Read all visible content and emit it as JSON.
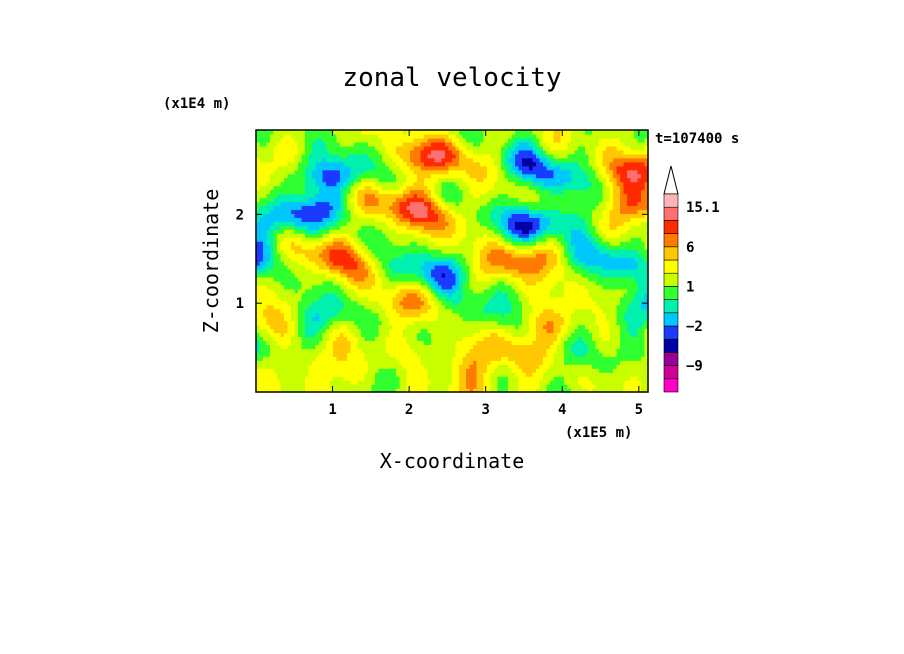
{
  "chart_data": {
    "type": "heatmap",
    "title": "zonal velocity",
    "xlabel": "X-coordinate",
    "ylabel": "Z-coordinate",
    "x_unit": "(x1E5 m)",
    "y_unit": "(x1E4 m)",
    "time_label": "t=107400 s",
    "xlim": [
      0,
      5.12
    ],
    "ylim": [
      0,
      2.95
    ],
    "x_ticks": [
      "1",
      "2",
      "3",
      "4",
      "5"
    ],
    "y_ticks": [
      "1",
      "2"
    ],
    "colorbar": {
      "levels": [
        -15,
        -12,
        -9,
        -6,
        -3,
        -2,
        -1,
        0,
        1,
        2,
        3,
        6,
        9,
        12,
        15.1
      ],
      "tick_labels": [
        "15.1",
        "6",
        "1",
        "−2",
        "−9"
      ],
      "colors": [
        "#ff00c8",
        "#d2009a",
        "#9a0096",
        "#0000a0",
        "#1a3aff",
        "#00c8ff",
        "#00f0b0",
        "#30ff30",
        "#c8ff00",
        "#ffff00",
        "#ffc800",
        "#ff7a00",
        "#ff2a00",
        "#ff7070",
        "#ffb4b4"
      ]
    },
    "grid": false,
    "legend": "right"
  }
}
